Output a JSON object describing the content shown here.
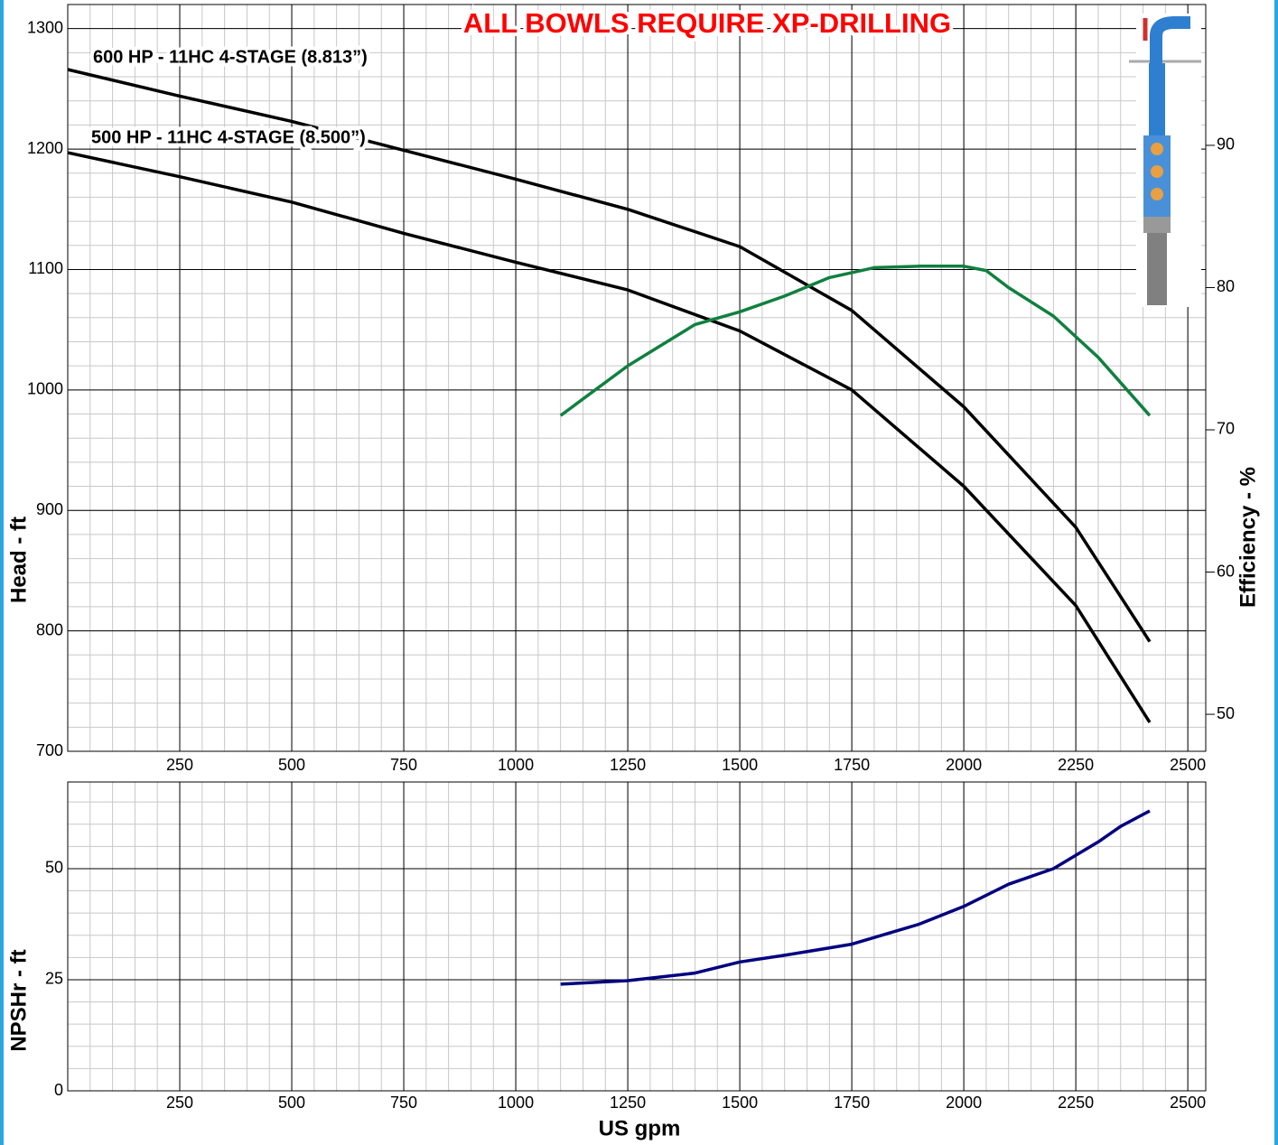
{
  "chart_data": [
    {
      "type": "line",
      "title": "ALL BOWLS REQUIRE XP-DRILLING",
      "ylabel": "Head - ft",
      "y2label": "Efficiency - %",
      "xlim": [
        0,
        2540
      ],
      "xticks": [
        250,
        500,
        750,
        1000,
        1250,
        1500,
        1750,
        2000,
        2250,
        2500
      ],
      "ylim": [
        700,
        1320
      ],
      "yticks": [
        700,
        800,
        900,
        1000,
        1100,
        1200,
        1300
      ],
      "y2lim": [
        47.4,
        99.9
      ],
      "y2ticks": [
        50,
        60,
        70,
        80,
        90
      ],
      "grid": true,
      "series": [
        {
          "name": "600 HP - 11HC 4-STAGE (8.813”)",
          "color": "#000000",
          "x": [
            0,
            250,
            500,
            750,
            1000,
            1250,
            1500,
            1750,
            2000,
            2250,
            2415
          ],
          "values": [
            1266,
            1244,
            1223,
            1199,
            1175,
            1150,
            1119,
            1066,
            986,
            886,
            791
          ]
        },
        {
          "name": "500 HP - 11HC 4-STAGE (8.500”)",
          "color": "#000000",
          "x": [
            0,
            250,
            500,
            750,
            1000,
            1250,
            1500,
            1750,
            2000,
            2250,
            2415
          ],
          "values": [
            1197,
            1177,
            1156,
            1130,
            1106,
            1083,
            1049,
            1000,
            920,
            821,
            724
          ]
        },
        {
          "color": "#108040",
          "axis": "y2",
          "x": [
            1100,
            1250,
            1400,
            1500,
            1600,
            1700,
            1800,
            1900,
            2000,
            2050,
            2100,
            2200,
            2300,
            2415
          ],
          "values": [
            71.0,
            74.5,
            77.4,
            78.3,
            79.4,
            80.7,
            81.4,
            81.5,
            81.5,
            81.2,
            80.0,
            78.0,
            75.1,
            71.0
          ]
        }
      ]
    },
    {
      "type": "line",
      "xlabel": "US gpm",
      "ylabel": "NPSHr - ft",
      "xlim": [
        0,
        2540
      ],
      "xticks": [
        250,
        500,
        750,
        1000,
        1250,
        1500,
        1750,
        2000,
        2250,
        2500
      ],
      "ylim": [
        0,
        69.5
      ],
      "yticks": [
        0,
        25,
        50
      ],
      "grid": true,
      "series": [
        {
          "color": "#000080",
          "x": [
            1100,
            1250,
            1400,
            1500,
            1600,
            1750,
            1900,
            2000,
            2100,
            2200,
            2300,
            2350,
            2415
          ],
          "values": [
            24,
            24.8,
            26.5,
            29,
            30.5,
            33,
            37.5,
            41.5,
            46.5,
            50,
            56,
            59.5,
            63
          ]
        }
      ]
    }
  ]
}
